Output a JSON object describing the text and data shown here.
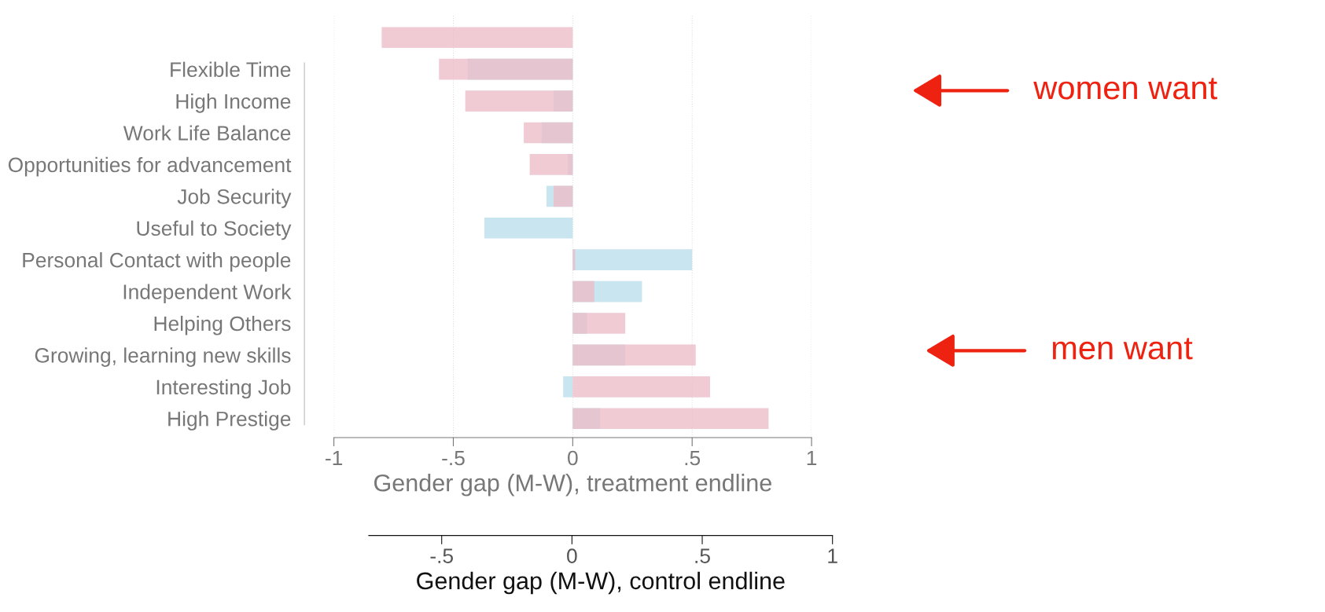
{
  "chart_data": {
    "type": "bar",
    "orientation": "horizontal",
    "categories": [
      null,
      "Flexible Time",
      "High Income",
      "Work Life Balance",
      "Opportunities for advancement",
      "Job Security",
      "Useful to Society",
      "Personal Contact with people",
      "Independent Work",
      "Helping Others",
      "Growing, learning new skills",
      "Interesting Job",
      "High Prestige"
    ],
    "series": [
      {
        "color": "#ecb9c6",
        "values": [
          -0.8,
          -0.56,
          -0.45,
          -0.205,
          -0.18,
          -0.08,
          null,
          0.01,
          0.09,
          0.22,
          0.515,
          0.575,
          0.82
        ]
      },
      {
        "color": "#b7dcea",
        "values": [
          null,
          -0.44,
          -0.08,
          -0.13,
          -0.02,
          -0.11,
          -0.37,
          0.5,
          0.29,
          0.06,
          0.22,
          -0.04,
          0.115
        ]
      }
    ],
    "xlim": [
      -1,
      1
    ],
    "xticks": [
      {
        "value": -1,
        "label": "-1"
      },
      {
        "value": -0.5,
        "label": "-.5"
      },
      0,
      {
        "value": 0.5,
        "label": ".5"
      },
      1
    ],
    "xlabel": "Gender gap (M-W), treatment endline",
    "x2lim": [
      -0.78,
      1
    ],
    "x2ticks": [
      {
        "value": -0.5,
        "label": "-.5"
      },
      0,
      {
        "value": 0.5,
        "label": ".5"
      },
      1
    ],
    "x2label": "Gender gap (M-W), control endline",
    "grid": "x",
    "annotations": [
      "women want",
      "men want"
    ]
  }
}
